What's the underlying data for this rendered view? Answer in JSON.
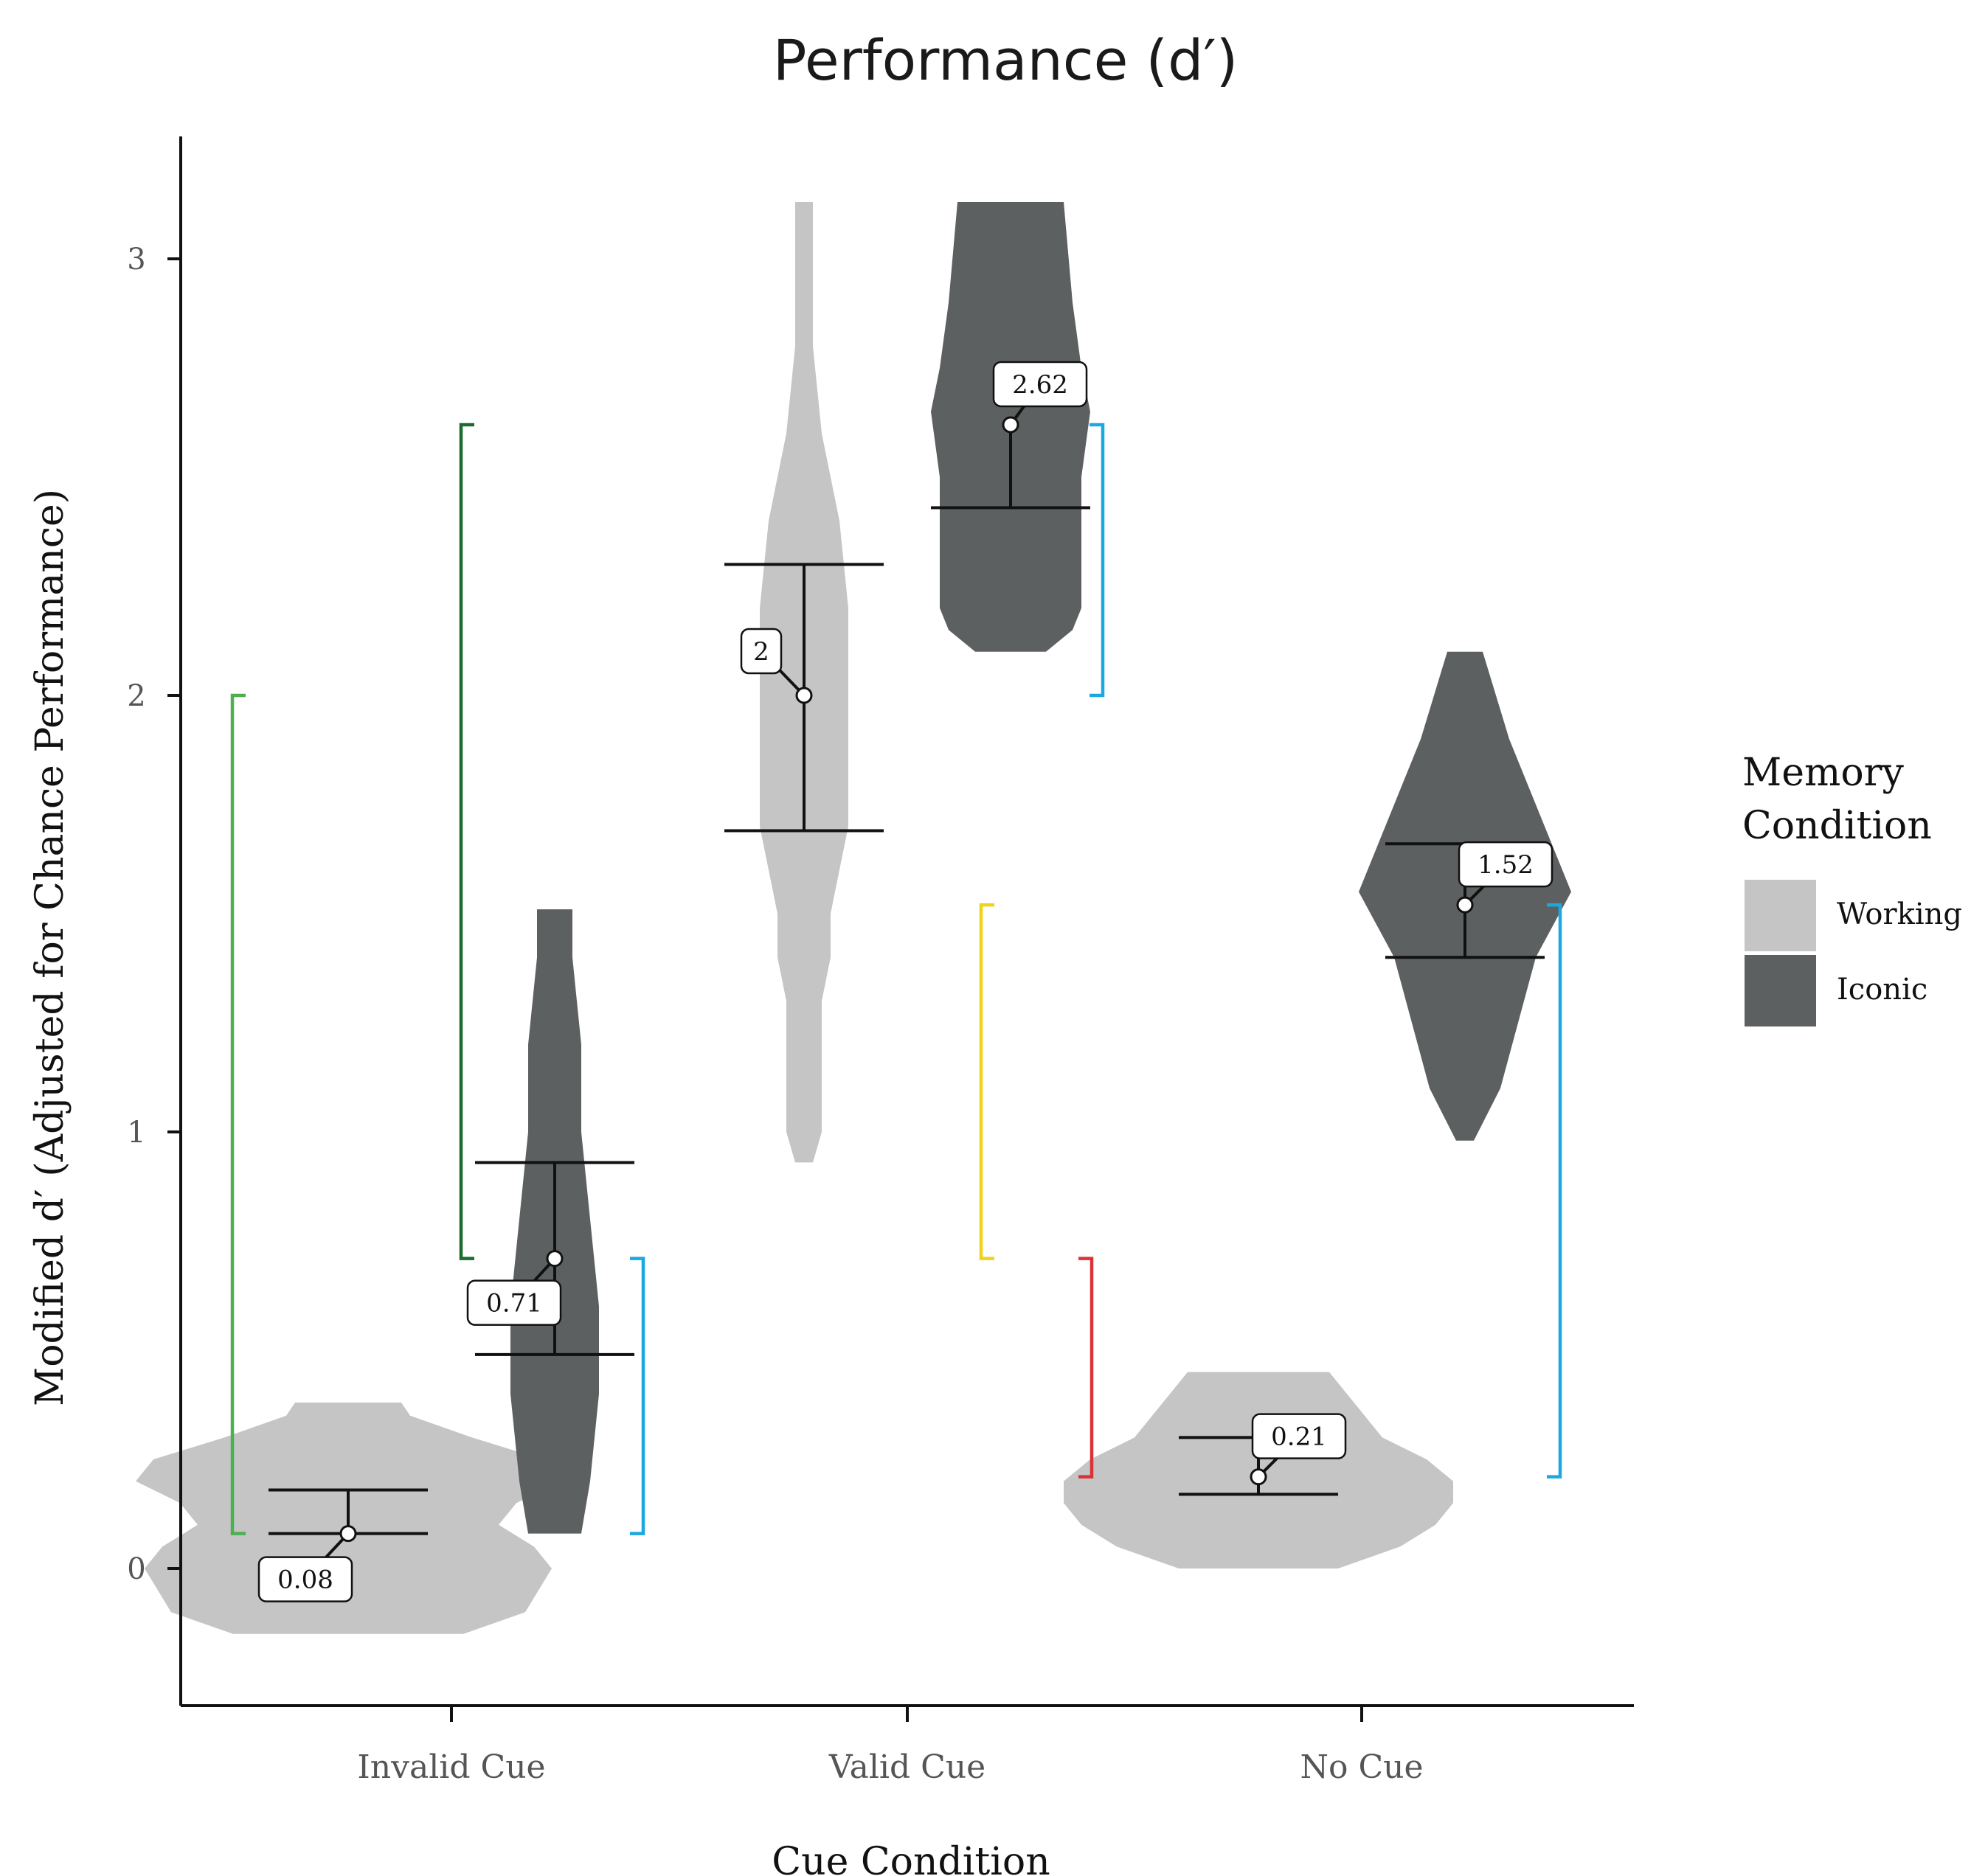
{
  "chart_data": {
    "type": "violin",
    "title": "Performance (d′)",
    "xlabel": "Cue Condition",
    "ylabel": "Modified d′ (Adjusted for Chance Performance)",
    "ylim": [
      -0.3,
      3.3
    ],
    "yticks": [
      0,
      1,
      2,
      3
    ],
    "categories": [
      "Invalid Cue",
      "Valid Cue",
      "No Cue"
    ],
    "grid": false,
    "legend": {
      "title": "Memory Condition",
      "placement": "right",
      "entries": [
        {
          "label": "Working",
          "color": "#c4c5c4"
        },
        {
          "label": "Iconic",
          "color": "#5d6061"
        }
      ]
    },
    "series": [
      {
        "name": "Working",
        "color": "#c4c5c4",
        "groups": [
          {
            "category": "Invalid Cue",
            "mean": 0.08,
            "mean_label": "0.08",
            "upper": 0.18,
            "lower": 0.08,
            "violin": [
              [
                -0.15,
                0.13
              ],
              [
                -0.1,
                0.2
              ],
              [
                0.0,
                0.23
              ],
              [
                0.05,
                0.21
              ],
              [
                0.1,
                0.17
              ],
              [
                0.15,
                0.19
              ],
              [
                0.2,
                0.24
              ],
              [
                0.25,
                0.22
              ],
              [
                0.3,
                0.14
              ],
              [
                0.35,
                0.07
              ],
              [
                0.38,
                0.06
              ]
            ]
          },
          {
            "category": "Valid Cue",
            "mean": 2.0,
            "mean_label": "2",
            "upper": 2.3,
            "lower": 1.69,
            "violin": [
              [
                0.93,
                0.01
              ],
              [
                1.0,
                0.02
              ],
              [
                1.1,
                0.02
              ],
              [
                1.3,
                0.02
              ],
              [
                1.4,
                0.03
              ],
              [
                1.5,
                0.03
              ],
              [
                1.6,
                0.04
              ],
              [
                1.7,
                0.05
              ],
              [
                1.9,
                0.05
              ],
              [
                2.0,
                0.05
              ],
              [
                2.2,
                0.05
              ],
              [
                2.4,
                0.04
              ],
              [
                2.6,
                0.02
              ],
              [
                2.8,
                0.01
              ],
              [
                3.13,
                0.01
              ]
            ]
          },
          {
            "category": "No Cue",
            "mean": 0.21,
            "mean_label": "0.21",
            "upper": 0.3,
            "lower": 0.17,
            "violin": [
              [
                0.0,
                0.09
              ],
              [
                0.05,
                0.16
              ],
              [
                0.1,
                0.2
              ],
              [
                0.15,
                0.22
              ],
              [
                0.2,
                0.22
              ],
              [
                0.25,
                0.19
              ],
              [
                0.3,
                0.14
              ],
              [
                0.4,
                0.1
              ],
              [
                0.45,
                0.08
              ]
            ]
          }
        ]
      },
      {
        "name": "Iconic",
        "color": "#5d6061",
        "groups": [
          {
            "category": "Invalid Cue",
            "mean": 0.71,
            "mean_label": "0.71",
            "upper": 0.93,
            "lower": 0.49,
            "violin": [
              [
                0.08,
                0.03
              ],
              [
                0.2,
                0.04
              ],
              [
                0.4,
                0.05
              ],
              [
                0.6,
                0.05
              ],
              [
                0.8,
                0.04
              ],
              [
                1.0,
                0.03
              ],
              [
                1.2,
                0.03
              ],
              [
                1.4,
                0.02
              ],
              [
                1.51,
                0.02
              ]
            ]
          },
          {
            "category": "Valid Cue",
            "mean": 2.62,
            "mean_label": "2.62",
            "upper": 2.43,
            "lower": 2.43,
            "violin": [
              [
                2.1,
                0.04
              ],
              [
                2.15,
                0.07
              ],
              [
                2.2,
                0.08
              ],
              [
                2.35,
                0.08
              ],
              [
                2.5,
                0.08
              ],
              [
                2.65,
                0.09
              ],
              [
                2.75,
                0.08
              ],
              [
                2.9,
                0.07
              ],
              [
                3.13,
                0.06
              ]
            ]
          },
          {
            "category": "No Cue",
            "mean": 1.52,
            "mean_label": "1.52",
            "upper": 1.66,
            "lower": 1.4,
            "violin": [
              [
                0.98,
                0.01
              ],
              [
                1.1,
                0.04
              ],
              [
                1.25,
                0.06
              ],
              [
                1.4,
                0.08
              ],
              [
                1.55,
                0.12
              ],
              [
                1.7,
                0.09
              ],
              [
                1.9,
                0.05
              ],
              [
                2.1,
                0.02
              ]
            ]
          }
        ]
      }
    ],
    "significance_brackets": [
      {
        "from": 0.08,
        "to": 2.0,
        "color": "#4caf50"
      },
      {
        "from": 0.71,
        "to": 2.62,
        "color": "#1b6b2f"
      },
      {
        "from": 0.08,
        "to": 0.71,
        "color": "#1ba8e0"
      },
      {
        "from": 2.0,
        "to": 2.62,
        "color": "#1ba8e0"
      },
      {
        "from": 0.71,
        "to": 1.52,
        "color": "#f0d21a"
      },
      {
        "from": 0.21,
        "to": 0.71,
        "color": "#d93335"
      },
      {
        "from": 0.21,
        "to": 1.52,
        "color": "#1ba8e0"
      }
    ]
  }
}
